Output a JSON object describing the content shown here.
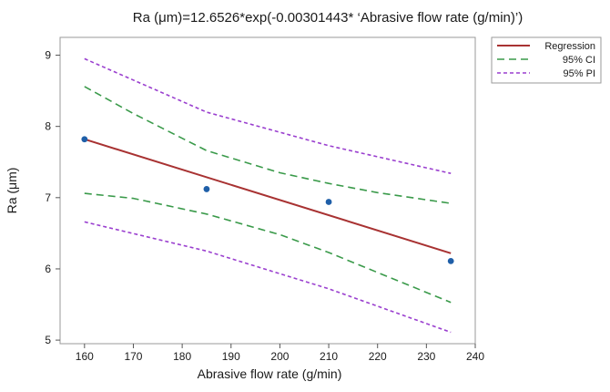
{
  "chart_data": {
    "type": "line",
    "title": "Ra (μm)=12.6526*exp(-0.00301443* ‘Abrasive flow rate (g/min)’)",
    "xlabel": "Abrasive flow rate (g/min)",
    "ylabel": "Ra (μm)",
    "xlim": [
      155,
      240
    ],
    "ylim": [
      4.95,
      9.25
    ],
    "xticks": [
      160,
      170,
      180,
      190,
      200,
      210,
      220,
      230,
      240
    ],
    "yticks": [
      5,
      6,
      7,
      8,
      9
    ],
    "grid": false,
    "legend_position": "top-right",
    "observations": {
      "x": [
        160,
        185,
        210,
        235
      ],
      "y": [
        7.82,
        7.12,
        6.94,
        6.11
      ]
    },
    "series": [
      {
        "name": "Regression",
        "style": "solid",
        "color": "#a83232",
        "x": [
          160,
          235
        ],
        "y": [
          7.82,
          6.22
        ]
      },
      {
        "name": "95% CI",
        "style": "dashed",
        "color": "#3a9a4a",
        "bound": "upper",
        "x": [
          160,
          170,
          185,
          200,
          210,
          220,
          235
        ],
        "y": [
          8.56,
          8.18,
          7.66,
          7.35,
          7.2,
          7.07,
          6.92
        ]
      },
      {
        "name": "95% CI",
        "style": "dashed",
        "color": "#3a9a4a",
        "bound": "lower",
        "x": [
          160,
          170,
          185,
          200,
          210,
          220,
          235
        ],
        "y": [
          7.06,
          6.99,
          6.77,
          6.48,
          6.23,
          5.95,
          5.53
        ]
      },
      {
        "name": "95% PI",
        "style": "dotted",
        "color": "#9a3fcf",
        "bound": "upper",
        "x": [
          160,
          185,
          210,
          235
        ],
        "y": [
          8.95,
          8.2,
          7.73,
          7.34
        ]
      },
      {
        "name": "95% PI",
        "style": "dotted",
        "color": "#9a3fcf",
        "bound": "lower",
        "x": [
          160,
          185,
          210,
          235
        ],
        "y": [
          6.66,
          6.25,
          5.72,
          5.11
        ]
      }
    ],
    "legend": [
      {
        "label": "Regression",
        "style": "solid",
        "color": "#a83232"
      },
      {
        "label": "95% CI",
        "style": "dashed",
        "color": "#3a9a4a"
      },
      {
        "label": "95% PI",
        "style": "dotted",
        "color": "#9a3fcf"
      }
    ],
    "point_color": "#1f5fa8"
  }
}
